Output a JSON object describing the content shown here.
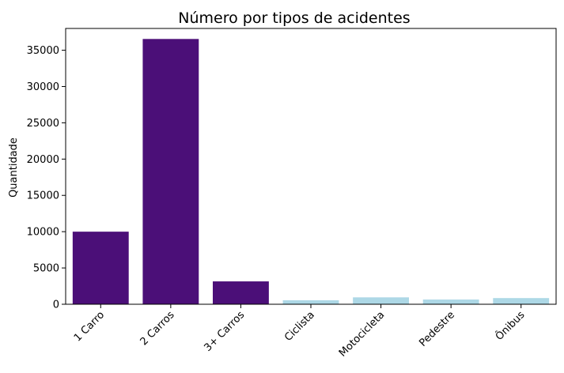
{
  "chart_data": {
    "type": "bar",
    "title": "Número por tipos de acidentes",
    "xlabel": "",
    "ylabel": "Quantidade",
    "categories": [
      "1 Carro",
      "2 Carros",
      "3+ Carros",
      "Ciclista",
      "Motocicleta",
      "Pedestre",
      "Ônibus"
    ],
    "values": [
      10000,
      36550,
      3150,
      550,
      950,
      650,
      850
    ],
    "bar_colors": [
      "#4b0f78",
      "#4b0f78",
      "#4b0f78",
      "#add8e6",
      "#add8e6",
      "#add8e6",
      "#add8e6"
    ],
    "ylim": [
      0,
      38000
    ],
    "yticks": [
      0,
      5000,
      10000,
      15000,
      20000,
      25000,
      30000,
      35000
    ],
    "grid": false,
    "x_tick_rotation_deg": 45
  }
}
